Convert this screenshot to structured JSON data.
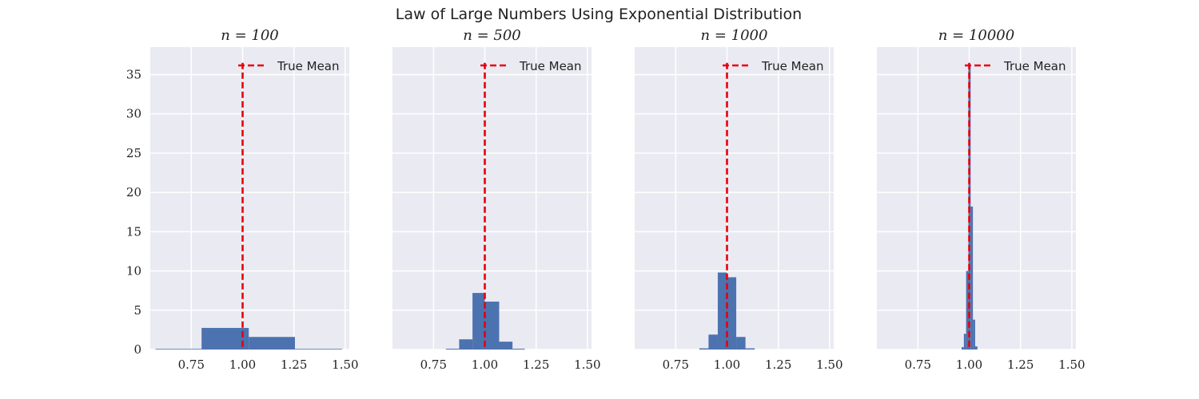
{
  "figure": {
    "title": "Law of Large Numbers Using Exponential Distribution"
  },
  "colors": {
    "panel_bg": "#eaeaf2",
    "grid": "#ffffff",
    "bar": "#4c72b0",
    "mean_line": "#e8000b"
  },
  "chart_data": [
    {
      "type": "bar",
      "title": "n = 100",
      "xlim": [
        0.55,
        1.52
      ],
      "ylim": [
        0,
        38.5
      ],
      "xticks": [
        0.75,
        1.0,
        1.25,
        1.5
      ],
      "xtick_labels": [
        "0.75",
        "1.00",
        "1.25",
        "1.50"
      ],
      "yticks": [
        0,
        5,
        10,
        15,
        20,
        25,
        30,
        35
      ],
      "ytick_labels": [
        "0",
        "5",
        "10",
        "15",
        "20",
        "25",
        "30",
        "35"
      ],
      "grid": true,
      "legend": {
        "position": "top-right",
        "label": "True Mean"
      },
      "true_mean": 1.0,
      "bins": [
        {
          "x0": 0.575,
          "x1": 0.8,
          "value": 0.08
        },
        {
          "x0": 0.8,
          "x1": 1.03,
          "value": 2.75
        },
        {
          "x0": 1.03,
          "x1": 1.255,
          "value": 1.6
        },
        {
          "x0": 1.255,
          "x1": 1.485,
          "value": 0.08
        }
      ]
    },
    {
      "type": "bar",
      "title": "n = 500",
      "xlim": [
        0.55,
        1.52
      ],
      "ylim": [
        0,
        38.5
      ],
      "xticks": [
        0.75,
        1.0,
        1.25,
        1.5
      ],
      "xtick_labels": [
        "0.75",
        "1.00",
        "1.25",
        "1.50"
      ],
      "yticks": [
        0,
        5,
        10,
        15,
        20,
        25,
        30,
        35
      ],
      "ytick_labels": [
        "0",
        "5",
        "10",
        "15",
        "20",
        "25",
        "30",
        "35"
      ],
      "grid": true,
      "legend": {
        "position": "top-right",
        "label": "True Mean"
      },
      "true_mean": 1.0,
      "bins": [
        {
          "x0": 0.81,
          "x1": 0.875,
          "value": 0.1
        },
        {
          "x0": 0.875,
          "x1": 0.94,
          "value": 1.3
        },
        {
          "x0": 0.94,
          "x1": 1.0,
          "value": 7.2
        },
        {
          "x0": 1.0,
          "x1": 1.07,
          "value": 6.1
        },
        {
          "x0": 1.07,
          "x1": 1.135,
          "value": 1.0
        },
        {
          "x0": 1.135,
          "x1": 1.195,
          "value": 0.1
        }
      ]
    },
    {
      "type": "bar",
      "title": "n = 1000",
      "xlim": [
        0.55,
        1.52
      ],
      "ylim": [
        0,
        38.5
      ],
      "xticks": [
        0.75,
        1.0,
        1.25,
        1.5
      ],
      "xtick_labels": [
        "0.75",
        "1.00",
        "1.25",
        "1.50"
      ],
      "yticks": [
        0,
        5,
        10,
        15,
        20,
        25,
        30,
        35
      ],
      "ytick_labels": [
        "0",
        "5",
        "10",
        "15",
        "20",
        "25",
        "30",
        "35"
      ],
      "grid": true,
      "legend": {
        "position": "top-right",
        "label": "True Mean"
      },
      "true_mean": 1.0,
      "bins": [
        {
          "x0": 0.865,
          "x1": 0.91,
          "value": 0.15
        },
        {
          "x0": 0.91,
          "x1": 0.955,
          "value": 1.9
        },
        {
          "x0": 0.955,
          "x1": 1.0,
          "value": 9.8
        },
        {
          "x0": 1.0,
          "x1": 1.045,
          "value": 9.2
        },
        {
          "x0": 1.045,
          "x1": 1.09,
          "value": 1.6
        },
        {
          "x0": 1.09,
          "x1": 1.135,
          "value": 0.15
        }
      ]
    },
    {
      "type": "bar",
      "title": "n = 10000",
      "xlim": [
        0.55,
        1.52
      ],
      "ylim": [
        0,
        38.5
      ],
      "xticks": [
        0.75,
        1.0,
        1.25,
        1.5
      ],
      "xtick_labels": [
        "0.75",
        "1.00",
        "1.25",
        "1.50"
      ],
      "yticks": [
        0,
        5,
        10,
        15,
        20,
        25,
        30,
        35
      ],
      "ytick_labels": [
        "0",
        "5",
        "10",
        "15",
        "20",
        "25",
        "30",
        "35"
      ],
      "grid": true,
      "legend": {
        "position": "top-right",
        "label": "True Mean"
      },
      "true_mean": 1.0,
      "bins": [
        {
          "x0": 0.963,
          "x1": 0.974,
          "value": 0.3
        },
        {
          "x0": 0.974,
          "x1": 0.985,
          "value": 2.0
        },
        {
          "x0": 0.985,
          "x1": 0.996,
          "value": 10.0
        },
        {
          "x0": 0.996,
          "x1": 1.007,
          "value": 36.2
        },
        {
          "x0": 1.007,
          "x1": 1.018,
          "value": 18.2
        },
        {
          "x0": 1.018,
          "x1": 1.029,
          "value": 3.8
        },
        {
          "x0": 1.029,
          "x1": 1.04,
          "value": 0.4
        }
      ]
    }
  ]
}
